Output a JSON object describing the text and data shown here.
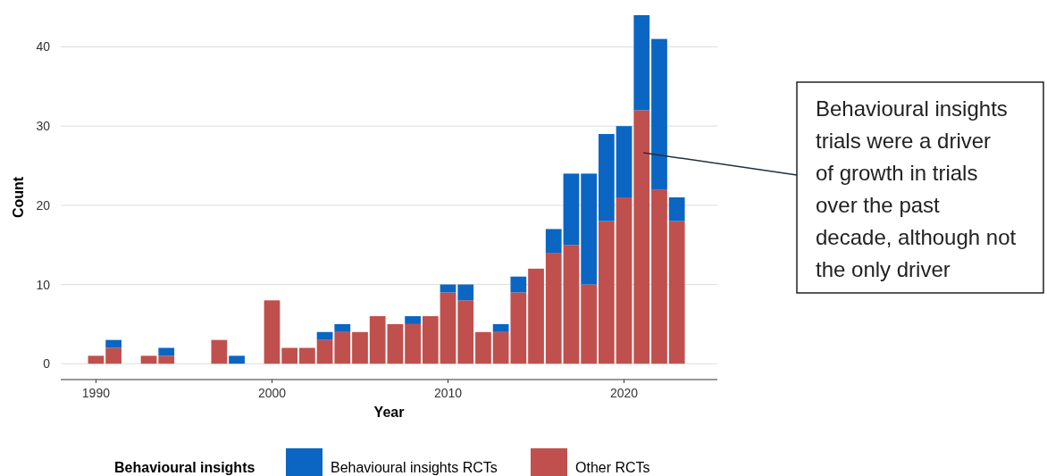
{
  "chart_data": {
    "type": "bar",
    "stacked": true,
    "xlabel": "Year",
    "ylabel": "Count",
    "legend_title": "Behavioural insights",
    "x": [
      1990,
      1991,
      1992,
      1993,
      1994,
      1995,
      1996,
      1997,
      1998,
      1999,
      2000,
      2001,
      2002,
      2003,
      2004,
      2005,
      2006,
      2007,
      2008,
      2009,
      2010,
      2011,
      2012,
      2013,
      2014,
      2015,
      2016,
      2017,
      2018,
      2019,
      2020,
      2021,
      2022,
      2023
    ],
    "series": [
      {
        "name": "Other RCTs",
        "color": "#c0504d",
        "values": [
          1,
          2,
          0,
          1,
          1,
          0,
          0,
          3,
          0,
          0,
          8,
          2,
          2,
          3,
          4,
          4,
          6,
          5,
          5,
          6,
          9,
          8,
          4,
          4,
          9,
          12,
          14,
          15,
          10,
          18,
          21,
          32,
          22,
          18
        ]
      },
      {
        "name": "Behavioural insights RCTs",
        "color": "#0a66c2",
        "values": [
          0,
          1,
          0,
          0,
          1,
          0,
          0,
          0,
          1,
          0,
          0,
          0,
          0,
          1,
          1,
          0,
          0,
          0,
          1,
          0,
          1,
          2,
          0,
          1,
          2,
          0,
          3,
          9,
          14,
          11,
          9,
          12,
          19,
          3
        ]
      }
    ],
    "xlim": [
      1988,
      2025.3
    ],
    "xticks": [
      1990,
      2000,
      2010,
      2020
    ],
    "ylim": [
      -2,
      44
    ],
    "yticks": [
      0,
      10,
      20,
      30,
      40
    ],
    "grid": "y",
    "legend": "bottom",
    "annotations": [
      "Behavioural insights trials were a driver of growth in trials over the past decade, although not the only driver"
    ]
  }
}
